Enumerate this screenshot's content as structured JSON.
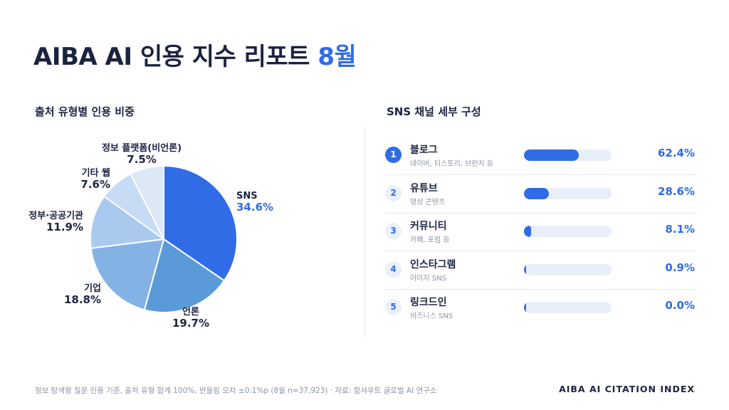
{
  "header": {
    "title_main": "AIBA AI 인용 지수 리포트",
    "title_accent": "8월"
  },
  "colors": {
    "accent": "#2f6ce6",
    "text_dark": "#1c2340",
    "text_muted": "#8a93a6",
    "track": "#e9eff9",
    "pie_slices": [
      "#2f6ce6",
      "#5a9ad8",
      "#85b2e4",
      "#a9c9ef",
      "#c8dbf4",
      "#dde8f7"
    ]
  },
  "chart_data": [
    {
      "type": "pie",
      "title": "출처 유형별 인용 비중",
      "slices": [
        {
          "label": "SNS",
          "value": 34.6,
          "value_label": "34.6%"
        },
        {
          "label": "언론",
          "value": 19.7,
          "value_label": "19.7%"
        },
        {
          "label": "기업",
          "value": 18.8,
          "value_label": "18.8%"
        },
        {
          "label": "정부·공공기관",
          "value": 11.9,
          "value_label": "11.9%"
        },
        {
          "label": "기타 웹",
          "value": 7.6,
          "value_label": "7.6%"
        },
        {
          "label": "정보 플랫폼(비언론)",
          "value": 7.5,
          "value_label": "7.5%"
        }
      ]
    },
    {
      "type": "bar",
      "orientation": "horizontal",
      "title": "SNS 채널 세부 구성",
      "items": [
        {
          "rank": "1",
          "label": "블로그",
          "sub": "네이버, 티스토리, 브런치 등",
          "value": 62.4,
          "value_label": "62.4%"
        },
        {
          "rank": "2",
          "label": "유튜브",
          "sub": "영상 콘텐츠",
          "value": 28.6,
          "value_label": "28.6%"
        },
        {
          "rank": "3",
          "label": "커뮤니티",
          "sub": "카페, 포럼 등",
          "value": 8.1,
          "value_label": "8.1%"
        },
        {
          "rank": "4",
          "label": "인스타그램",
          "sub": "이미지 SNS",
          "value": 0.9,
          "value_label": "0.9%"
        },
        {
          "rank": "5",
          "label": "링크드인",
          "sub": "비즈니스 SNS",
          "value": 0.0,
          "value_label": "0.0%"
        }
      ],
      "xlim": [
        0,
        100
      ]
    }
  ],
  "footer": {
    "note": "정보 탐색형 질문 인용 기준, 출처 유형 합계 100%, 반올림 오차 ±0.1%p (8월 n=37,923) · 자료: 함샤우트 글로벌 AI 연구소",
    "brand": "AIBA AI CITATION INDEX"
  }
}
